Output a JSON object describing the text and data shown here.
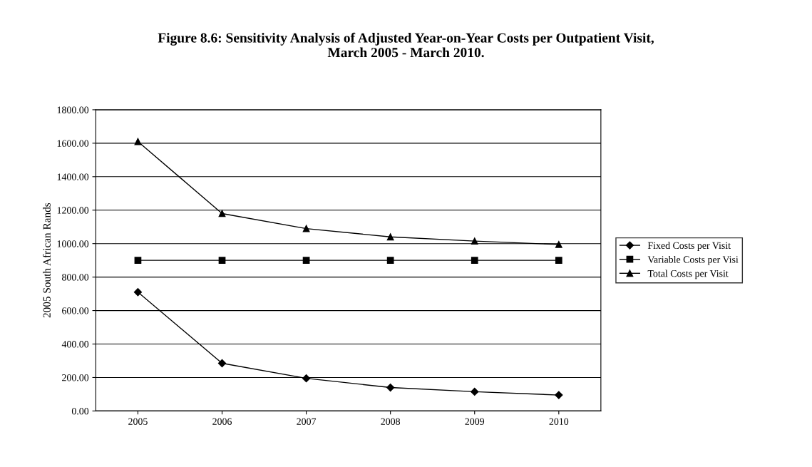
{
  "chart_data": {
    "type": "line",
    "title": "Figure 8.6: Sensitivity Analysis of Adjusted Year-on-Year Costs per Outpatient Visit,\nMarch 2005 - March 2010.",
    "ylabel": "2005 South African Rands",
    "categories": [
      "2005",
      "2006",
      "2007",
      "2008",
      "2009",
      "2010"
    ],
    "series": [
      {
        "name": "Fixed Costs per Visit",
        "color": "#000000",
        "marker": "diamond",
        "values": [
          710,
          285,
          195,
          140,
          115,
          95
        ]
      },
      {
        "name": "Variable Costs per Visi",
        "color": "#000000",
        "marker": "square",
        "values": [
          900,
          900,
          900,
          900,
          900,
          900
        ]
      },
      {
        "name": "Total Costs per Visit",
        "color": "#000000",
        "marker": "triangle",
        "values": [
          1610,
          1180,
          1090,
          1040,
          1015,
          995
        ]
      }
    ],
    "ylim": [
      0,
      1800
    ],
    "yticks": [
      {
        "value": 0,
        "label": "0.00"
      },
      {
        "value": 200,
        "label": "200.00"
      },
      {
        "value": 400,
        "label": "400.00"
      },
      {
        "value": 600,
        "label": "600.00"
      },
      {
        "value": 800,
        "label": "800.00"
      },
      {
        "value": 1000,
        "label": "1000.00"
      },
      {
        "value": 1200,
        "label": "1200.00"
      },
      {
        "value": 1400,
        "label": "1400.00"
      },
      {
        "value": 1600,
        "label": "1600.00"
      },
      {
        "value": 1800,
        "label": "1800.00"
      }
    ],
    "grid": "y",
    "legend": "right",
    "line_style": "solid"
  }
}
